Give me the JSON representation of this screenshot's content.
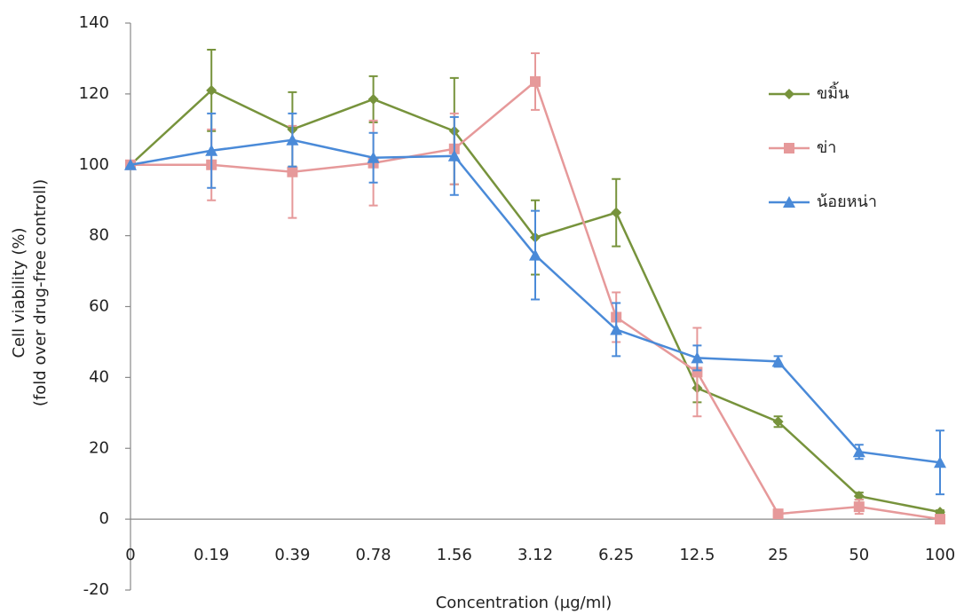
{
  "chart_data": {
    "type": "line",
    "x_label": "Concentration (µg/ml)",
    "y_label": [
      "Cell viability (%)",
      "(fold over drug-free controll)"
    ],
    "categories": [
      "0",
      "0.19",
      "0.39",
      "0.78",
      "1.56",
      "3.12",
      "6.25",
      "12.5",
      "25",
      "50",
      "100"
    ],
    "ylim": [
      -20,
      140
    ],
    "yticks": [
      -20,
      0,
      20,
      40,
      60,
      80,
      100,
      120,
      140
    ],
    "legend": "right",
    "series": [
      {
        "name": "ขมิ้น",
        "color": "#77933c",
        "marker": "diamond",
        "values": [
          100,
          121,
          110,
          118.5,
          109.5,
          79.5,
          86.5,
          37,
          27.5,
          6.5,
          2
        ],
        "errors": [
          0,
          11.5,
          10.5,
          6.5,
          15,
          10.5,
          9.5,
          4,
          1.5,
          1,
          0.5
        ]
      },
      {
        "name": "ข่า",
        "color": "#e6999a",
        "marker": "square",
        "values": [
          100,
          100,
          98,
          100.5,
          104.5,
          123.5,
          57,
          41.5,
          1.5,
          3.5,
          0
        ],
        "errors": [
          0,
          10,
          13,
          12,
          10,
          8,
          7,
          12.5,
          0.5,
          2,
          0.5
        ]
      },
      {
        "name": "น้อยหน่า",
        "color": "#4a8ad8",
        "marker": "triangle",
        "values": [
          100,
          104,
          107,
          102,
          102.5,
          74.5,
          53.5,
          45.5,
          44.5,
          19,
          16
        ],
        "errors": [
          0,
          10.5,
          7.5,
          7,
          11,
          12.5,
          7.5,
          3.5,
          1.5,
          2,
          9
        ]
      }
    ]
  }
}
